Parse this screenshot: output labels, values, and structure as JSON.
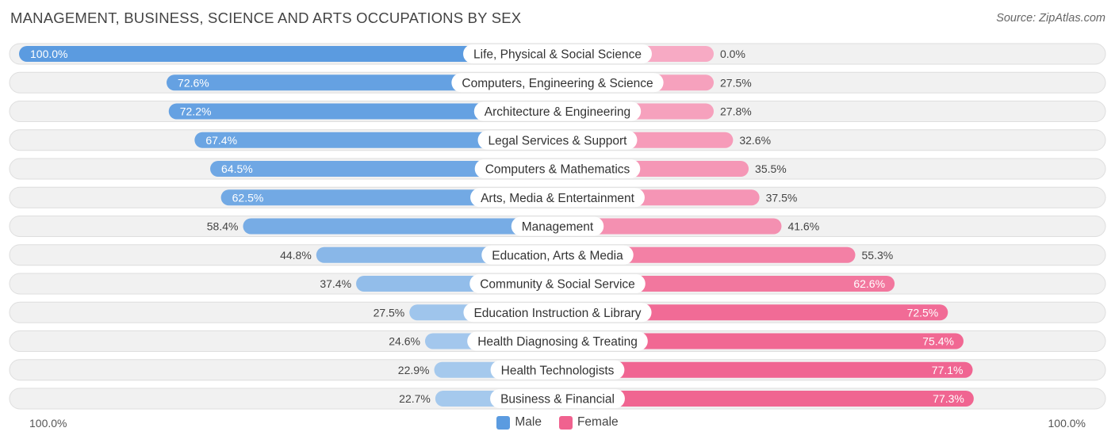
{
  "header": {
    "title": "MANAGEMENT, BUSINESS, SCIENCE AND ARTS OCCUPATIONS BY SEX",
    "source": "Source: ZipAtlas.com"
  },
  "colors": {
    "male_strong": "#5b9be0",
    "male_light": "#a9cbee",
    "female_strong": "#f0628f",
    "female_light": "#f7aac4",
    "track": "#f1f1f1",
    "track_border": "#dedede"
  },
  "chart_data": {
    "type": "bar",
    "orientation": "horizontal-diverging",
    "title": "MANAGEMENT, BUSINESS, SCIENCE AND ARTS OCCUPATIONS BY SEX",
    "categories": [
      "Life, Physical & Social Science",
      "Computers, Engineering & Science",
      "Architecture & Engineering",
      "Legal Services & Support",
      "Computers & Mathematics",
      "Arts, Media & Entertainment",
      "Management",
      "Education, Arts & Media",
      "Community & Social Service",
      "Education Instruction & Library",
      "Health Diagnosing & Treating",
      "Health Technologists",
      "Business & Financial"
    ],
    "series": [
      {
        "name": "Male",
        "values": [
          100.0,
          72.6,
          72.2,
          67.4,
          64.5,
          62.5,
          58.4,
          44.8,
          37.4,
          27.5,
          24.6,
          22.9,
          22.7
        ],
        "labels": [
          "100.0%",
          "72.6%",
          "72.2%",
          "67.4%",
          "64.5%",
          "62.5%",
          "58.4%",
          "44.8%",
          "37.4%",
          "27.5%",
          "24.6%",
          "22.9%",
          "22.7%"
        ]
      },
      {
        "name": "Female",
        "values": [
          0.0,
          27.5,
          27.8,
          32.6,
          35.5,
          37.5,
          41.6,
          55.3,
          62.6,
          72.5,
          75.4,
          77.1,
          77.3
        ],
        "labels": [
          "0.0%",
          "27.5%",
          "27.8%",
          "32.6%",
          "35.5%",
          "37.5%",
          "41.6%",
          "55.3%",
          "62.6%",
          "72.5%",
          "75.4%",
          "77.1%",
          "77.3%"
        ]
      }
    ],
    "xlim": [
      0,
      100
    ],
    "axis_left_label": "100.0%",
    "axis_right_label": "100.0%",
    "legend": [
      "Male",
      "Female"
    ],
    "legend_position": "bottom-center"
  }
}
